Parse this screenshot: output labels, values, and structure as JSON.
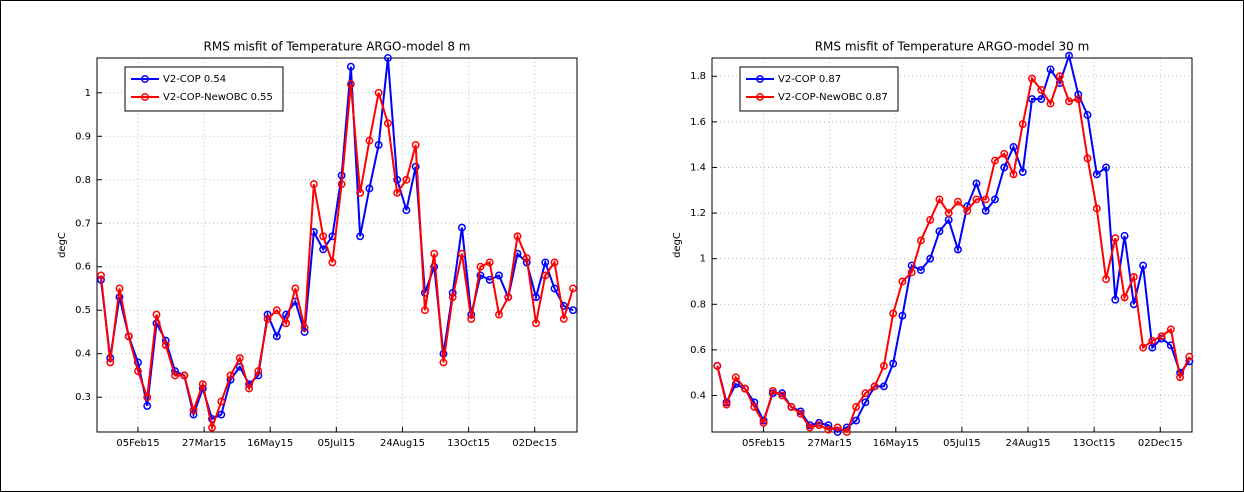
{
  "chart_data": [
    {
      "type": "line",
      "title": "RMS misfit of Temperature ARGO-model 8 m",
      "ylabel": "degC",
      "x": [
        "2015-01-08",
        "2015-01-15",
        "2015-01-22",
        "2015-01-29",
        "2015-02-05",
        "2015-02-12",
        "2015-02-19",
        "2015-02-26",
        "2015-03-05",
        "2015-03-12",
        "2015-03-19",
        "2015-03-26",
        "2015-04-02",
        "2015-04-09",
        "2015-04-16",
        "2015-04-23",
        "2015-04-30",
        "2015-05-07",
        "2015-05-14",
        "2015-05-21",
        "2015-05-28",
        "2015-06-04",
        "2015-06-11",
        "2015-06-18",
        "2015-06-25",
        "2015-07-02",
        "2015-07-09",
        "2015-07-16",
        "2015-07-23",
        "2015-07-30",
        "2015-08-06",
        "2015-08-13",
        "2015-08-20",
        "2015-08-27",
        "2015-09-03",
        "2015-09-10",
        "2015-09-17",
        "2015-09-24",
        "2015-10-01",
        "2015-10-08",
        "2015-10-15",
        "2015-10-22",
        "2015-10-29",
        "2015-11-05",
        "2015-11-12",
        "2015-11-19",
        "2015-11-26",
        "2015-12-03",
        "2015-12-10",
        "2015-12-17",
        "2015-12-24",
        "2015-12-31"
      ],
      "series": [
        {
          "name": "V2-COP 0.54",
          "color": "#0000ff",
          "values": [
            0.57,
            0.39,
            0.53,
            0.44,
            0.38,
            0.28,
            0.47,
            0.43,
            0.36,
            0.35,
            0.26,
            0.32,
            0.25,
            0.26,
            0.34,
            0.37,
            0.33,
            0.35,
            0.49,
            0.44,
            0.49,
            0.52,
            0.45,
            0.68,
            0.64,
            0.67,
            0.81,
            1.06,
            0.67,
            0.78,
            0.88,
            1.08,
            0.8,
            0.73,
            0.83,
            0.54,
            0.6,
            0.4,
            0.54,
            0.69,
            0.49,
            0.58,
            0.57,
            0.58,
            0.53,
            0.63,
            0.61,
            0.53,
            0.61,
            0.55,
            0.51,
            0.5
          ]
        },
        {
          "name": "V2-COP-NewOBC 0.55",
          "color": "#ff0000",
          "values": [
            0.58,
            0.38,
            0.55,
            0.44,
            0.36,
            0.3,
            0.49,
            0.42,
            0.35,
            0.35,
            0.27,
            0.33,
            0.23,
            0.29,
            0.35,
            0.39,
            0.32,
            0.36,
            0.48,
            0.5,
            0.47,
            0.55,
            0.46,
            0.79,
            0.67,
            0.61,
            0.79,
            1.02,
            0.77,
            0.89,
            1.0,
            0.93,
            0.77,
            0.8,
            0.88,
            0.5,
            0.63,
            0.38,
            0.53,
            0.63,
            0.48,
            0.6,
            0.61,
            0.49,
            0.53,
            0.67,
            0.62,
            0.47,
            0.58,
            0.61,
            0.48,
            0.55
          ]
        }
      ],
      "xlim": [
        "2015-01-05",
        "2016-01-03"
      ],
      "xticks": [
        {
          "value": "2015-02-05",
          "label": "05Feb15"
        },
        {
          "value": "2015-03-27",
          "label": "27Mar15"
        },
        {
          "value": "2015-05-16",
          "label": "16May15"
        },
        {
          "value": "2015-07-05",
          "label": "05Jul15"
        },
        {
          "value": "2015-08-24",
          "label": "24Aug15"
        },
        {
          "value": "2015-10-13",
          "label": "13Oct15"
        },
        {
          "value": "2015-12-02",
          "label": "02Dec15"
        }
      ],
      "ylim": [
        0.22,
        1.08
      ],
      "yticks": [
        0.3,
        0.4,
        0.5,
        0.6,
        0.7,
        0.8,
        0.9,
        1
      ],
      "grid": true,
      "legend": "upper left"
    },
    {
      "type": "line",
      "title": "RMS misfit of Temperature ARGO-model 30 m",
      "ylabel": "degC",
      "x": [
        "2015-01-01",
        "2015-01-08",
        "2015-01-15",
        "2015-01-22",
        "2015-01-29",
        "2015-02-05",
        "2015-02-12",
        "2015-02-19",
        "2015-02-26",
        "2015-03-05",
        "2015-03-12",
        "2015-03-19",
        "2015-03-26",
        "2015-04-02",
        "2015-04-09",
        "2015-04-16",
        "2015-04-23",
        "2015-04-30",
        "2015-05-07",
        "2015-05-14",
        "2015-05-21",
        "2015-05-28",
        "2015-06-04",
        "2015-06-11",
        "2015-06-18",
        "2015-06-25",
        "2015-07-02",
        "2015-07-09",
        "2015-07-16",
        "2015-07-23",
        "2015-07-30",
        "2015-08-06",
        "2015-08-13",
        "2015-08-20",
        "2015-08-27",
        "2015-09-03",
        "2015-09-10",
        "2015-09-17",
        "2015-09-24",
        "2015-10-01",
        "2015-10-08",
        "2015-10-15",
        "2015-10-22",
        "2015-10-29",
        "2015-11-05",
        "2015-11-12",
        "2015-11-19",
        "2015-11-26",
        "2015-12-03",
        "2015-12-10",
        "2015-12-17",
        "2015-12-24"
      ],
      "series": [
        {
          "name": "V2-COP 0.87",
          "color": "#0000ff",
          "values": [
            0.53,
            0.37,
            0.45,
            0.43,
            0.37,
            0.29,
            0.41,
            0.41,
            0.35,
            0.33,
            0.27,
            0.28,
            0.27,
            0.24,
            0.26,
            0.29,
            0.37,
            0.44,
            0.44,
            0.54,
            0.75,
            0.97,
            0.95,
            1.0,
            1.12,
            1.17,
            1.04,
            1.23,
            1.33,
            1.21,
            1.26,
            1.4,
            1.49,
            1.38,
            1.7,
            1.7,
            1.83,
            1.77,
            1.89,
            1.72,
            1.63,
            1.37,
            1.4,
            0.82,
            1.1,
            0.8,
            0.97,
            0.61,
            0.65,
            0.62,
            0.5,
            0.55
          ]
        },
        {
          "name": "V2-COP-NewOBC 0.87",
          "color": "#ff0000",
          "values": [
            0.53,
            0.36,
            0.48,
            0.43,
            0.35,
            0.28,
            0.42,
            0.4,
            0.35,
            0.32,
            0.26,
            0.27,
            0.25,
            0.26,
            0.24,
            0.35,
            0.41,
            0.44,
            0.53,
            0.76,
            0.9,
            0.94,
            1.08,
            1.17,
            1.26,
            1.2,
            1.25,
            1.21,
            1.26,
            1.26,
            1.43,
            1.46,
            1.37,
            1.59,
            1.79,
            1.74,
            1.68,
            1.8,
            1.69,
            1.7,
            1.44,
            1.22,
            0.91,
            1.09,
            0.83,
            0.92,
            0.61,
            0.64,
            0.66,
            0.69,
            0.48,
            0.57
          ]
        }
      ],
      "xlim": [
        "2014-12-28",
        "2015-12-26"
      ],
      "xticks": [
        {
          "value": "2015-02-05",
          "label": "05Feb15"
        },
        {
          "value": "2015-03-27",
          "label": "27Mar15"
        },
        {
          "value": "2015-05-16",
          "label": "16May15"
        },
        {
          "value": "2015-07-05",
          "label": "05Jul15"
        },
        {
          "value": "2015-08-24",
          "label": "24Aug15"
        },
        {
          "value": "2015-10-13",
          "label": "13Oct15"
        },
        {
          "value": "2015-12-02",
          "label": "02Dec15"
        }
      ],
      "ylim": [
        0.24,
        1.88
      ],
      "yticks": [
        0.4,
        0.6,
        0.8,
        1,
        1.2,
        1.4,
        1.6,
        1.8
      ],
      "grid": true,
      "legend": "upper left"
    }
  ]
}
